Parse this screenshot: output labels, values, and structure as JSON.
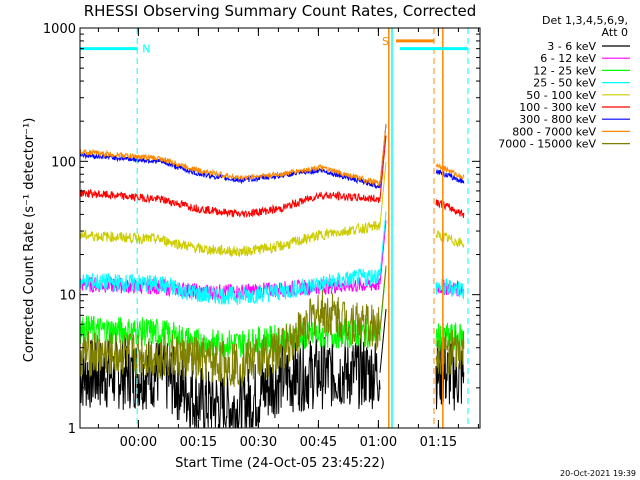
{
  "chart_data": {
    "type": "line",
    "title": "RHESSI Observing Summary Count Rates, Corrected",
    "xlabel_prefix": "Start Time (24-Oct-05 23:45:22)",
    "ylabel": "Corrected Count Rate (s⁻¹ detector⁻¹)",
    "yscale": "log",
    "ylim": [
      1,
      1000
    ],
    "xlim_minutes": [
      0,
      100
    ],
    "x_ticks": [
      {
        "label": "00:00",
        "minute": 14.6
      },
      {
        "label": "00:15",
        "minute": 29.6
      },
      {
        "label": "00:30",
        "minute": 44.6
      },
      {
        "label": "00:45",
        "minute": 59.6
      },
      {
        "label": "01:00",
        "minute": 74.6
      },
      {
        "label": "01:15",
        "minute": 89.6
      }
    ],
    "y_ticks": [
      {
        "label": "1",
        "value": 1
      },
      {
        "label": "10",
        "value": 10
      },
      {
        "label": "100",
        "value": 100
      },
      {
        "label": "1000",
        "value": 1000
      }
    ],
    "legend_header": [
      "Det 1,3,4,5,6,9,",
      "Att 0"
    ],
    "series": [
      {
        "name": "3 - 6 keV",
        "color": "#000000",
        "points": [
          [
            0,
            2.5
          ],
          [
            20,
            2.6
          ],
          [
            30,
            1.6
          ],
          [
            40,
            1.4
          ],
          [
            50,
            2.4
          ],
          [
            60,
            2.6
          ],
          [
            75,
            2.6
          ]
        ],
        "gap": [
          76.5,
          89
        ],
        "points2": [
          [
            89,
            2.6
          ],
          [
            96,
            2.4
          ]
        ]
      },
      {
        "name": "6 - 12 keV",
        "color": "#ff00ff",
        "points": [
          [
            0,
            12
          ],
          [
            20,
            11.5
          ],
          [
            30,
            10.5
          ],
          [
            40,
            10.5
          ],
          [
            50,
            11
          ],
          [
            60,
            11.5
          ],
          [
            75,
            12
          ]
        ],
        "gap": [
          76.5,
          89
        ],
        "points2": [
          [
            89,
            11.5
          ],
          [
            96,
            11
          ]
        ]
      },
      {
        "name": "12 - 25 keV",
        "color": "#00ff00",
        "points": [
          [
            0,
            5.5
          ],
          [
            20,
            5.2
          ],
          [
            30,
            4.3
          ],
          [
            40,
            4.3
          ],
          [
            50,
            4.7
          ],
          [
            60,
            5
          ],
          [
            75,
            5.2
          ]
        ],
        "gap": [
          76.5,
          89
        ],
        "points2": [
          [
            89,
            4.8
          ],
          [
            96,
            4.8
          ]
        ]
      },
      {
        "name": "25 - 50 keV",
        "color": "#00ffff",
        "points": [
          [
            0,
            12.5
          ],
          [
            20,
            12
          ],
          [
            30,
            10
          ],
          [
            40,
            9.8
          ],
          [
            50,
            10.5
          ],
          [
            60,
            12
          ],
          [
            75,
            14
          ]
        ],
        "gap": [
          76.5,
          89
        ],
        "points2": [
          [
            89,
            11.5
          ],
          [
            96,
            11
          ]
        ]
      },
      {
        "name": "50 - 100 keV",
        "color": "#cccc00",
        "points": [
          [
            0,
            28
          ],
          [
            20,
            26
          ],
          [
            30,
            22
          ],
          [
            40,
            21
          ],
          [
            50,
            23
          ],
          [
            60,
            28
          ],
          [
            75,
            33
          ]
        ],
        "gap": [
          76.5,
          89
        ],
        "points2": [
          [
            89,
            28
          ],
          [
            96,
            24
          ]
        ]
      },
      {
        "name": "100 - 300 keV",
        "color": "#ff0000",
        "points": [
          [
            0,
            58
          ],
          [
            20,
            52
          ],
          [
            30,
            44
          ],
          [
            40,
            40
          ],
          [
            50,
            44
          ],
          [
            60,
            56
          ],
          [
            75,
            52
          ]
        ],
        "gap": [
          76.5,
          89
        ],
        "points2": [
          [
            89,
            50
          ],
          [
            96,
            40
          ]
        ]
      },
      {
        "name": "300 - 800 keV",
        "color": "#0000ff",
        "points": [
          [
            0,
            112
          ],
          [
            20,
            100
          ],
          [
            30,
            80
          ],
          [
            40,
            72
          ],
          [
            50,
            78
          ],
          [
            60,
            86
          ],
          [
            75,
            65
          ]
        ],
        "gap": [
          76.5,
          89
        ],
        "points2": [
          [
            89,
            85
          ],
          [
            96,
            70
          ]
        ]
      },
      {
        "name": "800 - 7000 keV",
        "color": "#ff8800",
        "points": [
          [
            0,
            118
          ],
          [
            20,
            105
          ],
          [
            30,
            85
          ],
          [
            40,
            75
          ],
          [
            50,
            80
          ],
          [
            60,
            90
          ],
          [
            75,
            68
          ]
        ],
        "gap": [
          76.5,
          89
        ],
        "points2": [
          [
            89,
            95
          ],
          [
            96,
            75
          ]
        ]
      },
      {
        "name": "7000 - 15000 keV",
        "color": "#808000",
        "points": [
          [
            0,
            3.6
          ],
          [
            20,
            3.5
          ],
          [
            30,
            3.2
          ],
          [
            40,
            3.0
          ],
          [
            50,
            3.8
          ],
          [
            60,
            7.5
          ],
          [
            75,
            5.5
          ]
        ],
        "gap": [
          76.5,
          89
        ],
        "points2": [
          [
            89,
            3.8
          ],
          [
            96,
            3.6
          ]
        ]
      }
    ],
    "annotations": {
      "night_label": "N",
      "saa_label": "S",
      "night_bars": [
        [
          0,
          14.3
        ],
        [
          80,
          97
        ]
      ],
      "saa_bar": [
        79,
        88.5
      ],
      "vlines_cyan_dashed": [
        14.3,
        97
      ],
      "vlines_cyan_solid": [
        78
      ],
      "vlines_orange_solid": [
        77.2,
        90.7
      ],
      "vlines_orange_dashed": [
        88.5
      ]
    },
    "footer_date": "20-Oct-2021 19:39"
  }
}
